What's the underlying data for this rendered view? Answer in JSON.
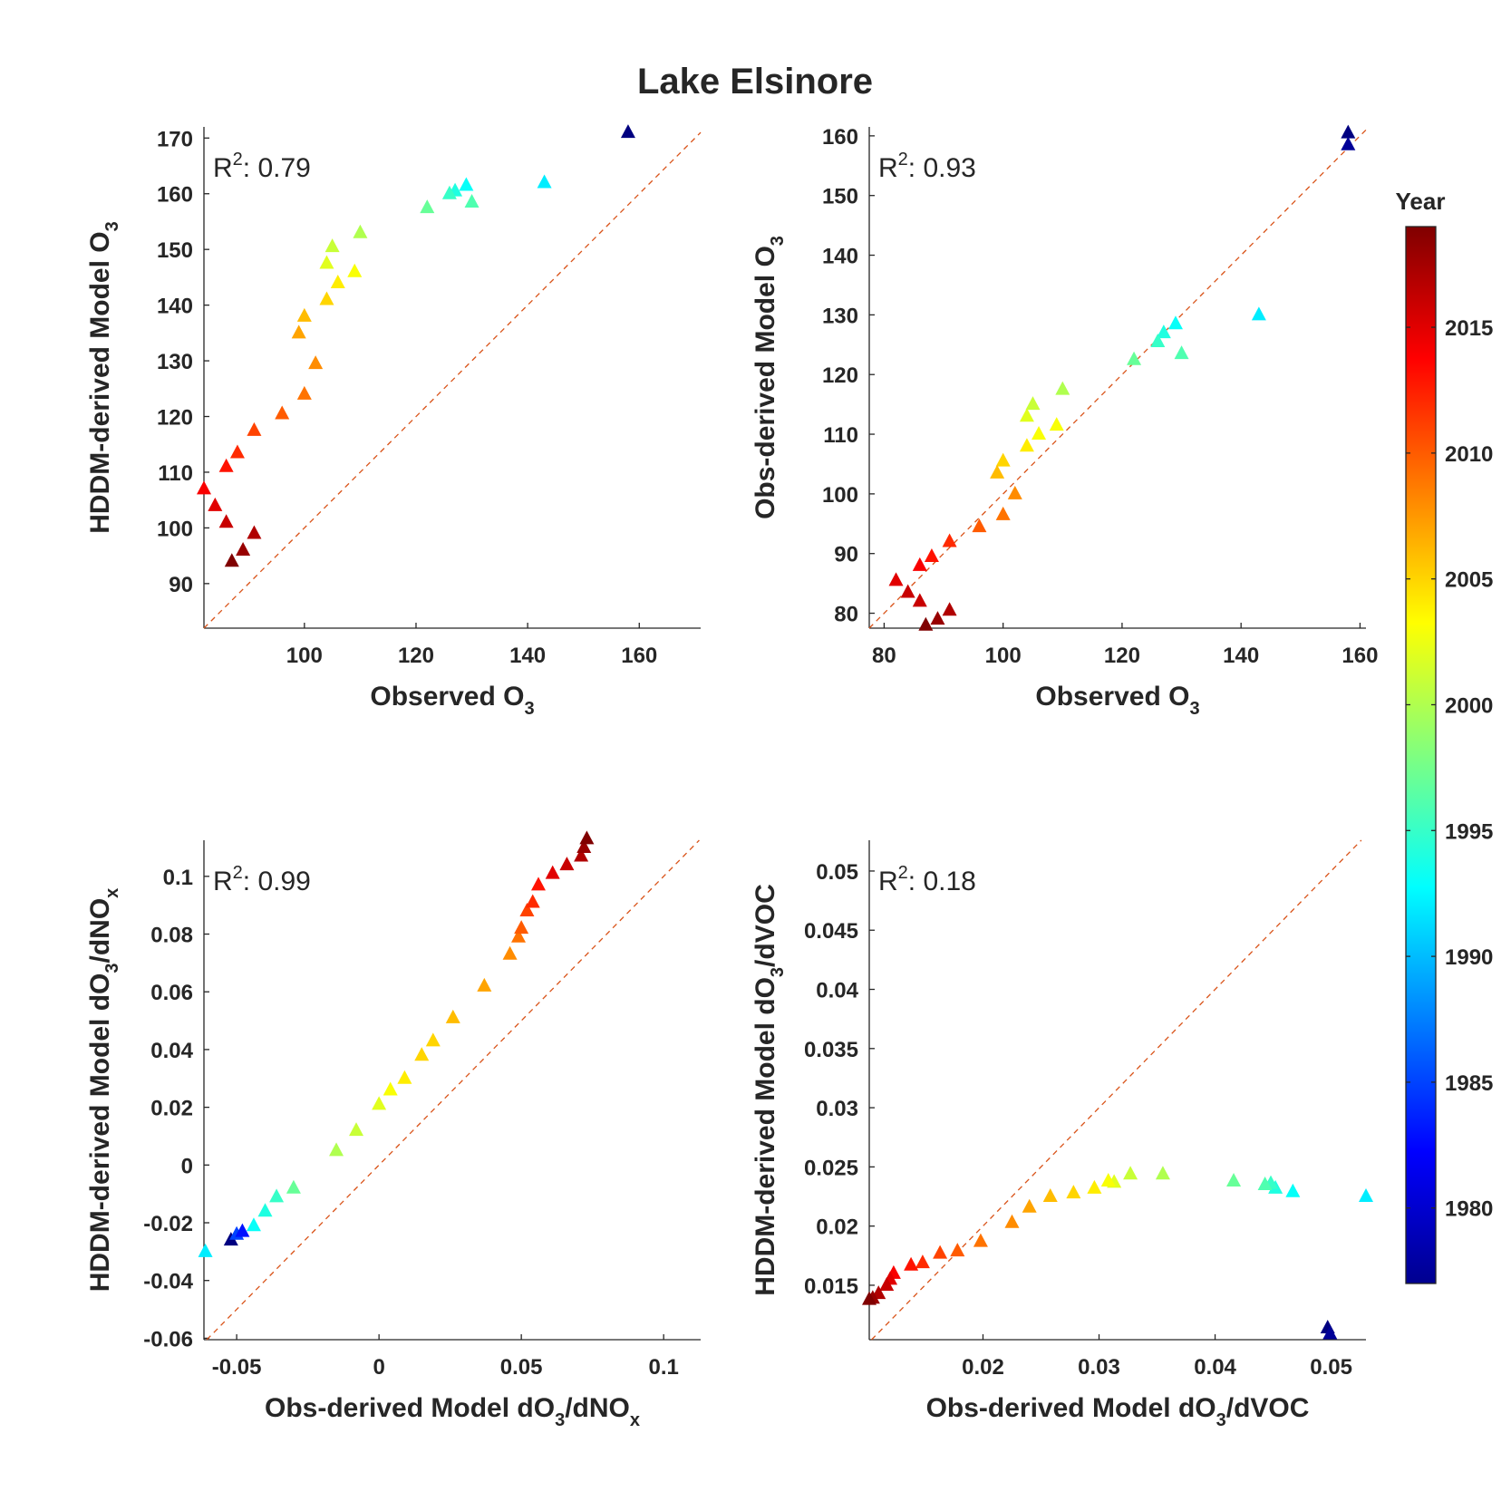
{
  "figure_title": "Lake Elsinore",
  "colorbar": {
    "label": "Year",
    "range": [
      1977,
      2019
    ],
    "ticks": [
      1980,
      1985,
      1990,
      1995,
      2000,
      2005,
      2010,
      2015
    ],
    "colormap": "jet"
  },
  "chart_data": [
    {
      "type": "scatter",
      "panel": "top-left",
      "xlabel_parts": [
        "Observed O",
        "3",
        ""
      ],
      "ylabel_parts": [
        "HDDM-derived Model O",
        "3",
        ""
      ],
      "annotation": {
        "pre": "R",
        "sup": "2",
        "post": ": 0.79"
      },
      "xlim": [
        82,
        171
      ],
      "ylim": [
        82,
        172
      ],
      "xticks": [
        100,
        120,
        140,
        160
      ],
      "xtick_labels": [
        "100",
        "120",
        "140",
        "160"
      ],
      "yticks": [
        90,
        100,
        110,
        120,
        130,
        140,
        150,
        160,
        170
      ],
      "ytick_labels": [
        "90",
        "100",
        "110",
        "120",
        "130",
        "140",
        "150",
        "160",
        "170"
      ],
      "reference_line": "y = x",
      "points": [
        {
          "x": 158,
          "y": 171,
          "year": 1977
        },
        {
          "x": 143,
          "y": 162,
          "year": 1992
        },
        {
          "x": 129,
          "y": 161.5,
          "year": 1993
        },
        {
          "x": 127,
          "y": 160.5,
          "year": 1994
        },
        {
          "x": 126,
          "y": 160,
          "year": 1995
        },
        {
          "x": 130,
          "y": 158.5,
          "year": 1996
        },
        {
          "x": 122,
          "y": 157.5,
          "year": 1997
        },
        {
          "x": 110,
          "y": 153,
          "year": 2000
        },
        {
          "x": 105,
          "y": 150.5,
          "year": 2001
        },
        {
          "x": 104,
          "y": 147.5,
          "year": 2002
        },
        {
          "x": 109,
          "y": 146,
          "year": 2003
        },
        {
          "x": 106,
          "y": 144,
          "year": 2004
        },
        {
          "x": 104,
          "y": 141,
          "year": 2005
        },
        {
          "x": 100,
          "y": 138,
          "year": 2006
        },
        {
          "x": 99,
          "y": 135,
          "year": 2007
        },
        {
          "x": 102,
          "y": 129.5,
          "year": 2008
        },
        {
          "x": 100,
          "y": 124,
          "year": 2009
        },
        {
          "x": 96,
          "y": 120.5,
          "year": 2010
        },
        {
          "x": 91,
          "y": 117.5,
          "year": 2011
        },
        {
          "x": 88,
          "y": 113.5,
          "year": 2012
        },
        {
          "x": 86,
          "y": 111,
          "year": 2013
        },
        {
          "x": 82,
          "y": 107,
          "year": 2014
        },
        {
          "x": 84,
          "y": 104,
          "year": 2015
        },
        {
          "x": 86,
          "y": 101,
          "year": 2016
        },
        {
          "x": 91,
          "y": 99,
          "year": 2017
        },
        {
          "x": 89,
          "y": 96,
          "year": 2018
        },
        {
          "x": 87,
          "y": 94,
          "year": 2019
        }
      ]
    },
    {
      "type": "scatter",
      "panel": "top-right",
      "xlabel_parts": [
        "Observed O",
        "3",
        ""
      ],
      "ylabel_parts": [
        "Obs-derived Model O",
        "3",
        ""
      ],
      "annotation": {
        "pre": "R",
        "sup": "2",
        "post": ": 0.93"
      },
      "xlim": [
        77.5,
        161
      ],
      "ylim": [
        77.5,
        161.5
      ],
      "xticks": [
        80,
        100,
        120,
        140,
        160
      ],
      "xtick_labels": [
        "80",
        "100",
        "120",
        "140",
        "160"
      ],
      "yticks": [
        80,
        90,
        100,
        110,
        120,
        130,
        140,
        150,
        160
      ],
      "ytick_labels": [
        "80",
        "90",
        "100",
        "110",
        "120",
        "130",
        "140",
        "150",
        "160"
      ],
      "reference_line": "y = x",
      "points": [
        {
          "x": 158,
          "y": 160.5,
          "year": 1977
        },
        {
          "x": 158,
          "y": 158.5,
          "year": 1978
        },
        {
          "x": 143,
          "y": 130,
          "year": 1992
        },
        {
          "x": 129,
          "y": 128.5,
          "year": 1993
        },
        {
          "x": 127,
          "y": 127,
          "year": 1994
        },
        {
          "x": 126,
          "y": 125.5,
          "year": 1995
        },
        {
          "x": 130,
          "y": 123.5,
          "year": 1996
        },
        {
          "x": 122,
          "y": 122.5,
          "year": 1997
        },
        {
          "x": 110,
          "y": 117.5,
          "year": 2000
        },
        {
          "x": 105,
          "y": 115,
          "year": 2001
        },
        {
          "x": 104,
          "y": 113,
          "year": 2002
        },
        {
          "x": 109,
          "y": 111.5,
          "year": 2003
        },
        {
          "x": 106,
          "y": 110,
          "year": 2003
        },
        {
          "x": 104,
          "y": 108,
          "year": 2004
        },
        {
          "x": 100,
          "y": 105.5,
          "year": 2005
        },
        {
          "x": 99,
          "y": 103.5,
          "year": 2006
        },
        {
          "x": 102,
          "y": 100,
          "year": 2008
        },
        {
          "x": 100,
          "y": 96.5,
          "year": 2009
        },
        {
          "x": 96,
          "y": 94.5,
          "year": 2010
        },
        {
          "x": 91,
          "y": 92,
          "year": 2012
        },
        {
          "x": 88,
          "y": 89.5,
          "year": 2013
        },
        {
          "x": 86,
          "y": 88,
          "year": 2014
        },
        {
          "x": 82,
          "y": 85.5,
          "year": 2015
        },
        {
          "x": 84,
          "y": 83.5,
          "year": 2016
        },
        {
          "x": 86,
          "y": 82,
          "year": 2016
        },
        {
          "x": 91,
          "y": 80.5,
          "year": 2017
        },
        {
          "x": 89,
          "y": 79,
          "year": 2018
        },
        {
          "x": 87,
          "y": 78,
          "year": 2019
        }
      ]
    },
    {
      "type": "scatter",
      "panel": "bottom-left",
      "xlabel_parts": [
        "Obs-derived Model dO",
        "3",
        "/dNO",
        "x"
      ],
      "ylabel_parts": [
        "HDDM-derived Model dO",
        "3",
        "/dNO",
        "x"
      ],
      "annotation": {
        "pre": "R",
        "sup": "2",
        "post": ": 0.99"
      },
      "xlim": [
        -0.0615,
        0.113
      ],
      "ylim": [
        -0.0605,
        0.1125
      ],
      "xticks": [
        -0.05,
        0,
        0.05,
        0.1
      ],
      "xtick_labels": [
        "-0.05",
        "0",
        "0.05",
        "0.1"
      ],
      "yticks": [
        -0.06,
        -0.04,
        -0.02,
        0,
        0.02,
        0.04,
        0.06,
        0.08,
        0.1
      ],
      "ytick_labels": [
        "-0.06",
        "-0.04",
        "-0.02",
        "0",
        "0.02",
        "0.04",
        "0.06",
        "0.08",
        "0.1"
      ],
      "reference_line": "y = x",
      "points": [
        {
          "x": -0.061,
          "y": -0.03,
          "year": 1992
        },
        {
          "x": -0.052,
          "y": -0.026,
          "year": 1977
        },
        {
          "x": -0.05,
          "y": -0.024,
          "year": 1985
        },
        {
          "x": -0.048,
          "y": -0.023,
          "year": 1983
        },
        {
          "x": -0.044,
          "y": -0.021,
          "year": 1993
        },
        {
          "x": -0.04,
          "y": -0.016,
          "year": 1994
        },
        {
          "x": -0.036,
          "y": -0.011,
          "year": 1995
        },
        {
          "x": -0.03,
          "y": -0.008,
          "year": 1997
        },
        {
          "x": -0.015,
          "y": 0.005,
          "year": 2000
        },
        {
          "x": -0.008,
          "y": 0.012,
          "year": 2001
        },
        {
          "x": 0,
          "y": 0.021,
          "year": 2002
        },
        {
          "x": 0.004,
          "y": 0.026,
          "year": 2003
        },
        {
          "x": 0.009,
          "y": 0.03,
          "year": 2004
        },
        {
          "x": 0.015,
          "y": 0.038,
          "year": 2005
        },
        {
          "x": 0.019,
          "y": 0.043,
          "year": 2005
        },
        {
          "x": 0.026,
          "y": 0.051,
          "year": 2006
        },
        {
          "x": 0.037,
          "y": 0.062,
          "year": 2007
        },
        {
          "x": 0.046,
          "y": 0.073,
          "year": 2008
        },
        {
          "x": 0.049,
          "y": 0.079,
          "year": 2009
        },
        {
          "x": 0.05,
          "y": 0.082,
          "year": 2010
        },
        {
          "x": 0.052,
          "y": 0.088,
          "year": 2011
        },
        {
          "x": 0.054,
          "y": 0.091,
          "year": 2012
        },
        {
          "x": 0.056,
          "y": 0.097,
          "year": 2013
        },
        {
          "x": 0.061,
          "y": 0.101,
          "year": 2015
        },
        {
          "x": 0.066,
          "y": 0.104,
          "year": 2016
        },
        {
          "x": 0.071,
          "y": 0.107,
          "year": 2017
        },
        {
          "x": 0.072,
          "y": 0.11,
          "year": 2018
        },
        {
          "x": 0.073,
          "y": 0.113,
          "year": 2019
        }
      ]
    },
    {
      "type": "scatter",
      "panel": "bottom-right",
      "xlabel_parts": [
        "Obs-derived Model dO",
        "3",
        "/dVOC",
        ""
      ],
      "ylabel_parts": [
        "HDDM-derived Model dO",
        "3",
        "/dVOC",
        ""
      ],
      "annotation": {
        "pre": "R",
        "sup": "2",
        "post": ": 0.18"
      },
      "xlim": [
        0.0102,
        0.053
      ],
      "ylim": [
        0.0104,
        0.0526
      ],
      "xticks": [
        0.02,
        0.03,
        0.04,
        0.05
      ],
      "xtick_labels": [
        "0.02",
        "0.03",
        "0.04",
        "0.05"
      ],
      "yticks": [
        0.015,
        0.02,
        0.025,
        0.03,
        0.035,
        0.04,
        0.045,
        0.05
      ],
      "ytick_labels": [
        "0.015",
        "0.02",
        "0.025",
        "0.03",
        "0.035",
        "0.04",
        "0.045",
        "0.05"
      ],
      "reference_line": "y = x",
      "points": [
        {
          "x": 0.0497,
          "y": 0.0114,
          "year": 1977
        },
        {
          "x": 0.0499,
          "y": 0.0109,
          "year": 1978
        },
        {
          "x": 0.053,
          "y": 0.0225,
          "year": 1992
        },
        {
          "x": 0.0467,
          "y": 0.0229,
          "year": 1993
        },
        {
          "x": 0.0452,
          "y": 0.0232,
          "year": 1994
        },
        {
          "x": 0.0448,
          "y": 0.0236,
          "year": 1995
        },
        {
          "x": 0.0443,
          "y": 0.0235,
          "year": 1996
        },
        {
          "x": 0.0416,
          "y": 0.0238,
          "year": 1997
        },
        {
          "x": 0.0355,
          "y": 0.0244,
          "year": 2000
        },
        {
          "x": 0.0327,
          "y": 0.0244,
          "year": 2001
        },
        {
          "x": 0.0313,
          "y": 0.0237,
          "year": 2002
        },
        {
          "x": 0.0308,
          "y": 0.0238,
          "year": 2003
        },
        {
          "x": 0.0296,
          "y": 0.0232,
          "year": 2004
        },
        {
          "x": 0.0278,
          "y": 0.0228,
          "year": 2005
        },
        {
          "x": 0.0258,
          "y": 0.0225,
          "year": 2006
        },
        {
          "x": 0.024,
          "y": 0.0216,
          "year": 2007
        },
        {
          "x": 0.0225,
          "y": 0.0203,
          "year": 2008
        },
        {
          "x": 0.0198,
          "y": 0.0187,
          "year": 2009
        },
        {
          "x": 0.0178,
          "y": 0.0179,
          "year": 2010
        },
        {
          "x": 0.0163,
          "y": 0.0177,
          "year": 2011
        },
        {
          "x": 0.0148,
          "y": 0.0169,
          "year": 2012
        },
        {
          "x": 0.0138,
          "y": 0.0167,
          "year": 2013
        },
        {
          "x": 0.0123,
          "y": 0.016,
          "year": 2014
        },
        {
          "x": 0.012,
          "y": 0.0155,
          "year": 2015
        },
        {
          "x": 0.0117,
          "y": 0.015,
          "year": 2016
        },
        {
          "x": 0.011,
          "y": 0.0143,
          "year": 2017
        },
        {
          "x": 0.0105,
          "y": 0.0139,
          "year": 2018
        },
        {
          "x": 0.0102,
          "y": 0.0138,
          "year": 2019
        }
      ]
    }
  ]
}
